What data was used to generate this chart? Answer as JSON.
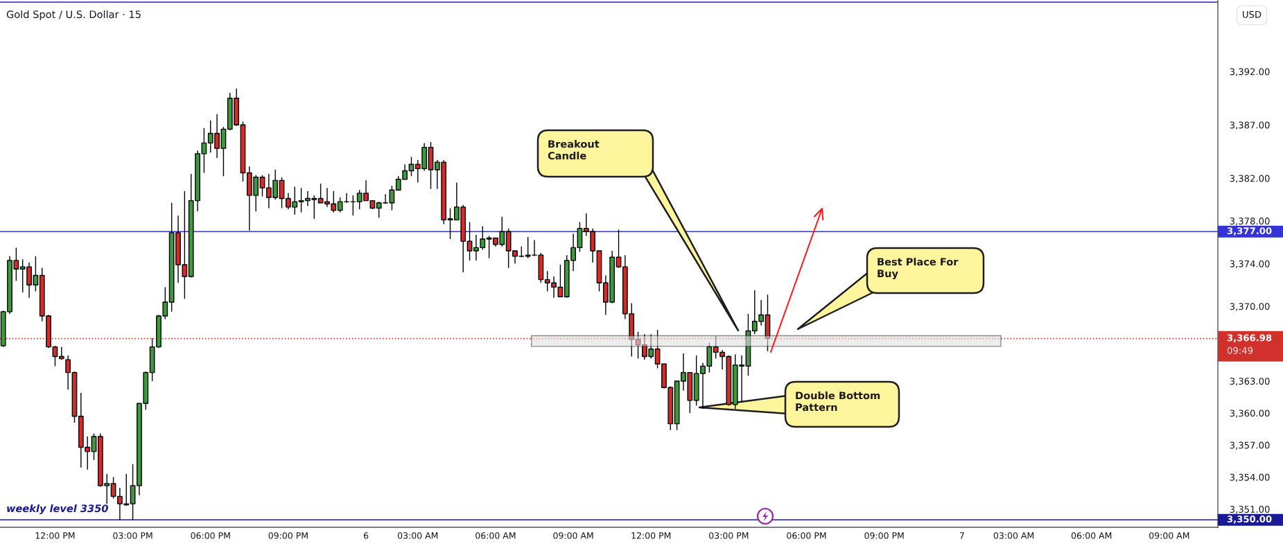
{
  "chart_data": {
    "type": "candlestick",
    "title": "Gold Spot / U.S. Dollar · 15",
    "ylabel": "USD",
    "categories": [
      null,
      null,
      null,
      null,
      null,
      null,
      null,
      null,
      "12:00 PM",
      null,
      null,
      null,
      null,
      null,
      null,
      null,
      null,
      null,
      null,
      null,
      "03:00 PM",
      null,
      null,
      null,
      null,
      null,
      null,
      null,
      null,
      null,
      null,
      null,
      "06:00 PM",
      null,
      null,
      null,
      null,
      null,
      null,
      null,
      null,
      null,
      null,
      null,
      "09:00 PM",
      null,
      null,
      null,
      null,
      null,
      null,
      null,
      null,
      null,
      null,
      null,
      "6",
      null,
      null,
      null,
      null,
      null,
      null,
      null,
      "03:00 AM",
      null,
      null,
      null,
      null,
      null,
      null,
      null,
      null,
      null,
      null,
      null,
      "06:00 AM",
      null,
      null,
      null,
      null,
      null,
      null,
      null,
      null,
      null,
      null,
      null,
      "09:00 AM",
      null,
      null,
      null,
      null,
      null,
      null,
      null,
      null,
      null,
      null,
      null,
      "12:00 PM",
      null,
      null,
      null,
      null,
      null,
      null,
      null,
      null,
      null,
      null,
      null,
      "03:00 PM",
      null,
      null,
      null,
      null,
      null,
      null,
      null,
      null,
      null,
      null,
      null,
      "06:00 PM",
      null,
      null,
      null,
      null,
      null,
      null,
      null,
      null,
      null,
      null,
      null,
      "09:00 PM",
      null,
      null,
      null,
      null,
      null,
      null,
      null,
      null,
      null,
      null,
      null,
      "7",
      null,
      null,
      null,
      null,
      null,
      null,
      null,
      "03:00 AM",
      null,
      null,
      null,
      null,
      null,
      null,
      null,
      null,
      null,
      null,
      null,
      "06:00 AM",
      null,
      null,
      null,
      null,
      null,
      null,
      null,
      null,
      null,
      null,
      null,
      "09:00 AM",
      null,
      null,
      null,
      null,
      null,
      null,
      null
    ],
    "ohlc": [
      [
        3366.3,
        3369.6,
        3366.2,
        3369.5
      ],
      [
        3369.5,
        3374.7,
        3369.3,
        3374.3
      ],
      [
        3374.3,
        3375.5,
        3372.4,
        3373.5
      ],
      [
        3373.5,
        3374.4,
        3371.3,
        3373.7
      ],
      [
        3373.7,
        3374.1,
        3370.8,
        3372.0
      ],
      [
        3372.0,
        3374.7,
        3371.4,
        3372.9
      ],
      [
        3372.9,
        3373.6,
        3368.6,
        3369.1
      ],
      [
        3369.1,
        3369.2,
        3366.1,
        3366.2
      ],
      [
        3366.2,
        3366.3,
        3364.4,
        3365.3
      ],
      [
        3365.3,
        3366.2,
        3365.0,
        3365.1
      ],
      [
        3365.0,
        3365.4,
        3362.2,
        3363.8
      ],
      [
        3363.8,
        3363.9,
        3359.1,
        3359.7
      ],
      [
        3359.7,
        3361.9,
        3354.9,
        3356.8
      ],
      [
        3356.8,
        3357.8,
        3354.7,
        3356.4
      ],
      [
        3356.4,
        3358.1,
        3355.6,
        3357.8
      ],
      [
        3357.8,
        3358.1,
        3353.1,
        3353.2
      ],
      [
        3353.2,
        3354.3,
        3351.5,
        3353.4
      ],
      [
        3353.4,
        3354.0,
        3352.0,
        3352.2
      ],
      [
        3352.2,
        3353.0,
        3350.0,
        3351.5
      ],
      [
        3351.4,
        3354.3,
        3351.3,
        3351.5
      ],
      [
        3351.5,
        3355.2,
        3350.0,
        3353.2
      ],
      [
        3353.2,
        3360.9,
        3352.3,
        3360.9
      ],
      [
        3360.9,
        3363.9,
        3360.3,
        3363.8
      ],
      [
        3363.8,
        3367.0,
        3363.0,
        3366.2
      ],
      [
        3366.2,
        3369.2,
        3366.1,
        3369.1
      ],
      [
        3369.1,
        3371.8,
        3368.8,
        3370.4
      ],
      [
        3370.4,
        3379.7,
        3369.5,
        3376.9
      ],
      [
        3376.9,
        3378.5,
        3372.2,
        3373.9
      ],
      [
        3373.9,
        3380.8,
        3370.7,
        3372.8
      ],
      [
        3372.8,
        3382.4,
        3372.7,
        3379.9
      ],
      [
        3379.9,
        3384.6,
        3378.9,
        3384.3
      ],
      [
        3384.3,
        3386.7,
        3382.5,
        3385.3
      ],
      [
        3385.3,
        3387.4,
        3384.4,
        3386.2
      ],
      [
        3386.2,
        3388.0,
        3383.9,
        3384.8
      ],
      [
        3384.8,
        3386.8,
        3382.2,
        3386.6
      ],
      [
        3386.6,
        3390.0,
        3386.5,
        3389.5
      ],
      [
        3389.5,
        3390.4,
        3386.9,
        3387.0
      ],
      [
        3387.0,
        3387.3,
        3381.7,
        3382.5
      ],
      [
        3382.5,
        3383.1,
        3377.1,
        3380.4
      ],
      [
        3380.4,
        3382.3,
        3378.9,
        3382.1
      ],
      [
        3382.1,
        3382.3,
        3380.3,
        3381.1
      ],
      [
        3381.1,
        3382.4,
        3379.2,
        3380.2
      ],
      [
        3380.2,
        3382.8,
        3380.0,
        3381.8
      ],
      [
        3381.8,
        3382.1,
        3379.2,
        3380.1
      ],
      [
        3380.1,
        3380.6,
        3379.1,
        3379.3
      ],
      [
        3379.3,
        3381.2,
        3378.6,
        3379.8
      ],
      [
        3379.8,
        3381.1,
        3378.8,
        3379.9
      ],
      [
        3379.9,
        3380.8,
        3379.4,
        3380.1
      ],
      [
        3380.0,
        3380.4,
        3378.2,
        3380.1
      ],
      [
        3380.1,
        3381.5,
        3379.7,
        3379.7
      ],
      [
        3379.8,
        3381.1,
        3379.3,
        3379.6
      ],
      [
        3379.6,
        3380.8,
        3378.8,
        3379.0
      ],
      [
        3379.0,
        3380.2,
        3378.8,
        3379.8
      ],
      [
        3379.8,
        3380.6,
        3379.7,
        3379.8
      ],
      [
        3379.8,
        3380.4,
        3378.5,
        3379.8
      ],
      [
        3379.8,
        3380.9,
        3379.1,
        3380.6
      ],
      [
        3380.6,
        3381.8,
        3379.9,
        3379.9
      ],
      [
        3379.9,
        3379.9,
        3379.1,
        3379.2
      ],
      [
        3379.2,
        3379.8,
        3378.3,
        3379.7
      ],
      [
        3379.7,
        3380.5,
        3379.6,
        3379.7
      ],
      [
        3379.7,
        3381.3,
        3379.0,
        3380.9
      ],
      [
        3380.9,
        3382.2,
        3380.9,
        3381.9
      ],
      [
        3381.9,
        3383.3,
        3381.9,
        3382.7
      ],
      [
        3382.7,
        3384.0,
        3382.2,
        3383.3
      ],
      [
        3383.3,
        3383.7,
        3381.6,
        3382.9
      ],
      [
        3382.9,
        3385.3,
        3382.7,
        3384.9
      ],
      [
        3384.9,
        3385.4,
        3381.0,
        3382.8
      ],
      [
        3382.8,
        3383.7,
        3381.0,
        3383.5
      ],
      [
        3383.5,
        3383.7,
        3377.7,
        3378.1
      ],
      [
        3378.1,
        3379.2,
        3376.3,
        3378.2
      ],
      [
        3378.1,
        3381.6,
        3378.1,
        3379.3
      ],
      [
        3379.3,
        3379.5,
        3373.2,
        3376.1
      ],
      [
        3376.1,
        3377.9,
        3374.3,
        3375.2
      ],
      [
        3375.2,
        3376.7,
        3374.3,
        3375.5
      ],
      [
        3375.5,
        3377.5,
        3375.3,
        3376.3
      ],
      [
        3376.3,
        3376.6,
        3374.5,
        3376.4
      ],
      [
        3376.4,
        3376.4,
        3375.6,
        3375.8
      ],
      [
        3375.8,
        3378.4,
        3375.6,
        3377.0
      ],
      [
        3377.0,
        3377.3,
        3373.6,
        3375.2
      ],
      [
        3375.2,
        3375.2,
        3374.0,
        3374.7
      ],
      [
        3374.7,
        3375.6,
        3374.6,
        3374.7
      ],
      [
        3374.7,
        3376.5,
        3374.5,
        3374.8
      ],
      [
        3374.8,
        3376.2,
        3374.7,
        3374.8
      ],
      [
        3374.8,
        3375.0,
        3372.2,
        3372.5
      ],
      [
        3372.5,
        3373.3,
        3371.4,
        3372.2
      ],
      [
        3372.2,
        3372.8,
        3370.8,
        3371.8
      ],
      [
        3371.8,
        3373.9,
        3370.9,
        3370.9
      ],
      [
        3370.9,
        3374.8,
        3370.8,
        3374.3
      ],
      [
        3374.3,
        3376.8,
        3373.3,
        3375.5
      ],
      [
        3375.5,
        3377.9,
        3375.1,
        3377.3
      ],
      [
        3377.3,
        3378.7,
        3376.6,
        3377.0
      ],
      [
        3377.0,
        3377.3,
        3374.1,
        3375.2
      ],
      [
        3375.2,
        3375.2,
        3371.4,
        3372.2
      ],
      [
        3372.2,
        3372.9,
        3369.2,
        3370.4
      ],
      [
        3370.4,
        3375.2,
        3370.3,
        3374.6
      ],
      [
        3374.6,
        3377.2,
        3373.6,
        3373.7
      ],
      [
        3373.7,
        3374.8,
        3368.8,
        3369.3
      ],
      [
        3369.3,
        3370.3,
        3365.3,
        3366.9
      ],
      [
        3366.9,
        3367.6,
        3365.1,
        3366.4
      ],
      [
        3366.4,
        3367.4,
        3365.0,
        3365.3
      ],
      [
        3365.3,
        3367.4,
        3365.1,
        3366.0
      ],
      [
        3366.0,
        3367.8,
        3364.2,
        3364.6
      ],
      [
        3364.6,
        3364.6,
        3362.3,
        3362.4
      ],
      [
        3362.4,
        3362.5,
        3358.4,
        3359.0
      ],
      [
        3359.0,
        3363.0,
        3358.4,
        3363.0
      ],
      [
        3363.0,
        3365.6,
        3362.1,
        3363.8
      ],
      [
        3363.8,
        3363.8,
        3360.0,
        3361.2
      ],
      [
        3361.2,
        3365.4,
        3360.7,
        3363.7
      ],
      [
        3363.7,
        3364.7,
        3360.4,
        3364.4
      ],
      [
        3364.4,
        3366.6,
        3363.8,
        3366.2
      ],
      [
        3366.2,
        3367.2,
        3365.1,
        3365.7
      ],
      [
        3365.7,
        3365.9,
        3364.1,
        3365.3
      ],
      [
        3365.3,
        3365.4,
        3360.7,
        3360.8
      ],
      [
        3360.8,
        3365.5,
        3360.4,
        3364.5
      ],
      [
        3364.5,
        3365.4,
        3361.0,
        3364.4
      ],
      [
        3364.4,
        3369.3,
        3363.5,
        3367.7
      ],
      [
        3367.7,
        3371.5,
        3367.4,
        3368.6
      ],
      [
        3368.6,
        3370.6,
        3368.2,
        3369.2
      ],
      [
        3369.2,
        3371.1,
        3365.8,
        3367.0
      ],
      null,
      null,
      null,
      null,
      null,
      null,
      null,
      null,
      null,
      null,
      null,
      null,
      null,
      null,
      null,
      null,
      null,
      null,
      null,
      null,
      null,
      null,
      null,
      null,
      null,
      null,
      null,
      null,
      null,
      null,
      null,
      null,
      null,
      null,
      null,
      null,
      null,
      null,
      null,
      null,
      null,
      null,
      null,
      null,
      null,
      null,
      null,
      null,
      null,
      null,
      null,
      null,
      null,
      null,
      null,
      null,
      null,
      null,
      null,
      null,
      null,
      null,
      null,
      null,
      null,
      null,
      null,
      null,
      null
    ],
    "colors": [
      "#3d9a3d",
      "#3d9a3d",
      "#d42b2b",
      "#3d9a3d",
      "#d42b2b",
      "#3d9a3d",
      "#d42b2b",
      "#d42b2b",
      "#d42b2b",
      "#d42b2b",
      "#d42b2b",
      "#d42b2b",
      "#d42b2b",
      "#d42b2b",
      "#3d9a3d",
      "#d42b2b",
      "#3d9a3d",
      "#d42b2b",
      "#d42b2b",
      "#3d9a3d",
      "#3d9a3d",
      "#3d9a3d",
      "#3d9a3d",
      "#3d9a3d",
      "#3d9a3d",
      "#3d9a3d",
      "#3d9a3d",
      "#d42b2b",
      "#d42b2b",
      "#3d9a3d",
      "#3d9a3d",
      "#3d9a3d",
      "#3d9a3d",
      "#d42b2b",
      "#3d9a3d",
      "#3d9a3d",
      "#d42b2b",
      "#d42b2b",
      "#d42b2b",
      "#3d9a3d",
      "#d42b2b",
      "#d42b2b",
      "#3d9a3d",
      "#d42b2b",
      "#d42b2b",
      "#3d9a3d",
      "#3d9a3d",
      "#3d9a3d",
      "#3d9a3d",
      "#d42b2b",
      "#d42b2b",
      "#d42b2b",
      "#3d9a3d",
      "#000000",
      "#000000",
      "#3d9a3d",
      "#d42b2b",
      "#d42b2b",
      "#3d9a3d",
      "#000000",
      "#3d9a3d",
      "#3d9a3d",
      "#3d9a3d",
      "#3d9a3d",
      "#d42b2b",
      "#3d9a3d",
      "#d42b2b",
      "#3d9a3d",
      "#d42b2b",
      "#3d9a3d",
      "#3d9a3d",
      "#d42b2b",
      "#d42b2b",
      "#3d9a3d",
      "#3d9a3d",
      "#3d9a3d",
      "#d42b2b",
      "#3d9a3d",
      "#d42b2b",
      "#d42b2b",
      "#000000",
      "#3d9a3d",
      "#000000",
      "#d42b2b",
      "#d42b2b",
      "#d42b2b",
      "#d42b2b",
      "#3d9a3d",
      "#3d9a3d",
      "#3d9a3d",
      "#d42b2b",
      "#d42b2b",
      "#d42b2b",
      "#d42b2b",
      "#3d9a3d",
      "#d42b2b",
      "#d42b2b",
      "#d42b2b",
      "#d42b2b",
      "#d42b2b",
      "#3d9a3d",
      "#d42b2b",
      "#d42b2b",
      "#d42b2b",
      "#3d9a3d",
      "#3d9a3d",
      "#d42b2b",
      "#3d9a3d",
      "#3d9a3d",
      "#3d9a3d",
      "#d42b2b",
      "#d42b2b",
      "#d42b2b",
      "#3d9a3d",
      "#d42b2b",
      "#3d9a3d",
      "#3d9a3d",
      "#3d9a3d",
      "#d42b2b",
      null,
      null,
      null,
      null,
      null,
      null,
      null,
      null,
      null,
      null,
      null,
      null,
      null,
      null,
      null,
      null,
      null,
      null,
      null,
      null,
      null,
      null,
      null,
      null,
      null,
      null,
      null,
      null,
      null,
      null,
      null,
      null,
      null,
      null,
      null,
      null,
      null,
      null,
      null,
      null,
      null,
      null,
      null,
      null,
      null,
      null,
      null,
      null,
      null,
      null,
      null,
      null,
      null,
      null,
      null,
      null,
      null,
      null,
      null,
      null,
      null,
      null,
      null,
      null,
      null,
      null,
      null,
      null,
      null
    ],
    "ylim": [
      3349.3,
      3398.7
    ],
    "yticks": [
      {
        "value": 3351,
        "label": "3,351.00"
      },
      {
        "value": 3354,
        "label": "3,354.00"
      },
      {
        "value": 3357,
        "label": "3,357.00"
      },
      {
        "value": 3360,
        "label": "3,360.00"
      },
      {
        "value": 3363,
        "label": "3,363.00"
      },
      {
        "value": 3370,
        "label": "3,370.00"
      },
      {
        "value": 3374,
        "label": "3,374.00"
      },
      {
        "value": 3378,
        "label": "3,378.00"
      },
      {
        "value": 3382,
        "label": "3,382.00"
      },
      {
        "value": 3387,
        "label": "3,387.00"
      },
      {
        "value": 3392,
        "label": "3,392.00"
      }
    ],
    "ref_lines": [
      {
        "axis": "y",
        "value": 3398.5,
        "color": "#4040d0"
      },
      {
        "axis": "y",
        "value": 3377,
        "label": "3,377.00",
        "color": "#3333d6"
      },
      {
        "axis": "y",
        "value": 3366.98,
        "label": "3,366.98",
        "color": "#d0312d",
        "line_style": "dotted"
      },
      {
        "axis": "y",
        "value": 3350,
        "label": "3,350.00",
        "color": "#1a1a96"
      }
    ],
    "bands": [
      {
        "axis": "y",
        "from": 3366.25,
        "to": 3367.25,
        "color": "#e0e0e0"
      }
    ],
    "annotations": [
      "Breakout\nCandle",
      "Best Place For\nBuy",
      "Double Bottom\nPattern",
      "weekly level 3350",
      "09:49"
    ]
  }
}
